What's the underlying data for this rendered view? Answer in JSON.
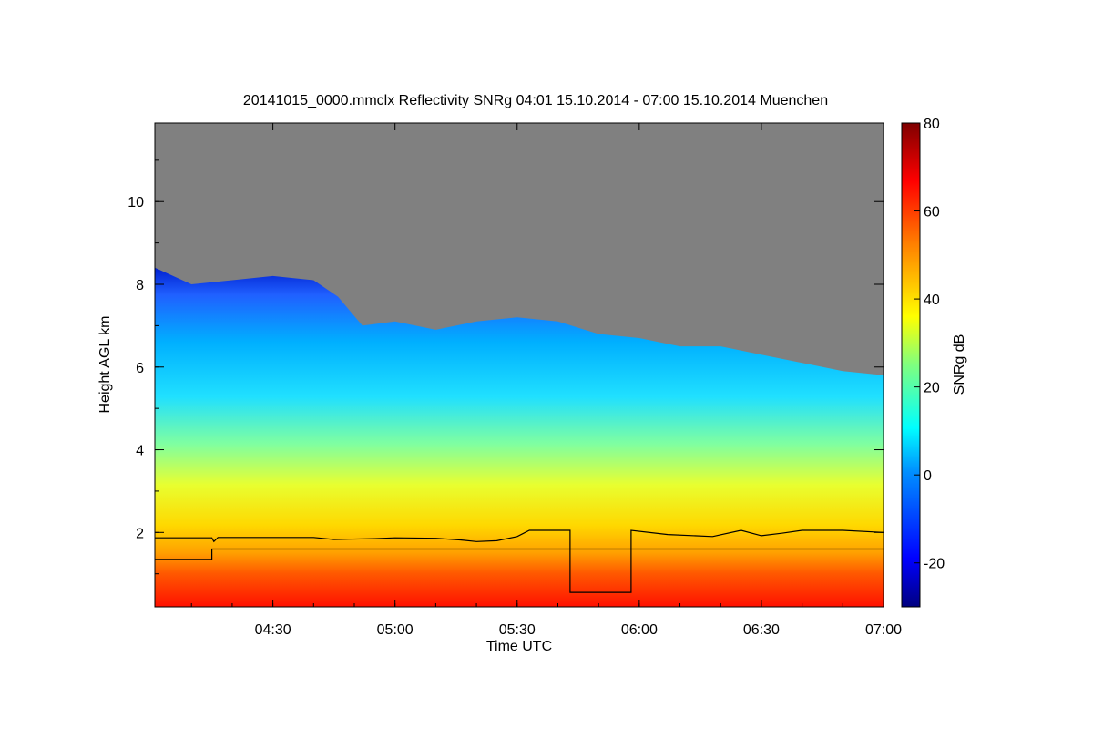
{
  "chart_data": {
    "type": "heatmap",
    "title": "20141015_0000.mmclx Reflectivity SNRg   04:01 15.10.2014 - 07:00 15.10.2014 Muenchen",
    "xlabel": "Time UTC",
    "ylabel": "Height AGL km",
    "x_range": [
      "04:01",
      "07:00"
    ],
    "y_range": [
      0.2,
      11.9
    ],
    "x_ticks": [
      "04:30",
      "05:00",
      "05:30",
      "06:00",
      "06:30",
      "07:00"
    ],
    "x_tick_values_min": [
      30,
      60,
      90,
      120,
      150,
      180
    ],
    "y_ticks": [
      "2",
      "4",
      "6",
      "8",
      "10"
    ],
    "y_tick_values": [
      2,
      4,
      6,
      8,
      10
    ],
    "colorbar": {
      "label": "SNRg dB",
      "range": [
        -30,
        80
      ],
      "ticks": [
        "80",
        "60",
        "40",
        "20",
        "0",
        "-20"
      ],
      "tick_values": [
        80,
        60,
        40,
        20,
        0,
        -20
      ]
    },
    "no_signal_color": "#808080",
    "echo_top_km": [
      {
        "t": 1,
        "h": 8.4
      },
      {
        "t": 10,
        "h": 8.0
      },
      {
        "t": 20,
        "h": 8.1
      },
      {
        "t": 30,
        "h": 8.2
      },
      {
        "t": 40,
        "h": 8.1
      },
      {
        "t": 46,
        "h": 7.7
      },
      {
        "t": 52,
        "h": 7.0
      },
      {
        "t": 60,
        "h": 7.1
      },
      {
        "t": 70,
        "h": 6.9
      },
      {
        "t": 80,
        "h": 7.1
      },
      {
        "t": 90,
        "h": 7.2
      },
      {
        "t": 100,
        "h": 7.1
      },
      {
        "t": 110,
        "h": 6.8
      },
      {
        "t": 120,
        "h": 6.7
      },
      {
        "t": 130,
        "h": 6.5
      },
      {
        "t": 140,
        "h": 6.5
      },
      {
        "t": 150,
        "h": 6.3
      },
      {
        "t": 160,
        "h": 6.1
      },
      {
        "t": 170,
        "h": 5.9
      },
      {
        "t": 180,
        "h": 5.8
      }
    ],
    "series": [
      {
        "points": [
          {
            "t": 1,
            "h": 1.87
          },
          {
            "t": 15,
            "h": 1.87
          },
          {
            "t": 15.5,
            "h": 1.78
          },
          {
            "t": 16.5,
            "h": 1.88
          },
          {
            "t": 40,
            "h": 1.88
          },
          {
            "t": 45,
            "h": 1.83
          },
          {
            "t": 55,
            "h": 1.85
          },
          {
            "t": 60,
            "h": 1.87
          },
          {
            "t": 70,
            "h": 1.86
          },
          {
            "t": 76,
            "h": 1.82
          },
          {
            "t": 80,
            "h": 1.78
          },
          {
            "t": 85,
            "h": 1.8
          },
          {
            "t": 90,
            "h": 1.9
          },
          {
            "t": 93,
            "h": 2.05
          },
          {
            "t": 103,
            "h": 2.05
          },
          {
            "t": 103,
            "h": 0.55
          },
          {
            "t": 118,
            "h": 0.55
          },
          {
            "t": 118,
            "h": 2.05
          },
          {
            "t": 127,
            "h": 1.95
          },
          {
            "t": 138,
            "h": 1.9
          },
          {
            "t": 145,
            "h": 2.05
          },
          {
            "t": 150,
            "h": 1.92
          },
          {
            "t": 155,
            "h": 1.98
          },
          {
            "t": 160,
            "h": 2.05
          },
          {
            "t": 170,
            "h": 2.05
          },
          {
            "t": 180,
            "h": 2.0
          }
        ]
      },
      {
        "points": [
          {
            "t": 1,
            "h": 1.35
          },
          {
            "t": 15,
            "h": 1.35
          },
          {
            "t": 15,
            "h": 1.6
          },
          {
            "t": 103,
            "h": 1.6
          },
          {
            "t": 118,
            "h": 1.6
          },
          {
            "t": 180,
            "h": 1.6
          }
        ]
      }
    ]
  }
}
